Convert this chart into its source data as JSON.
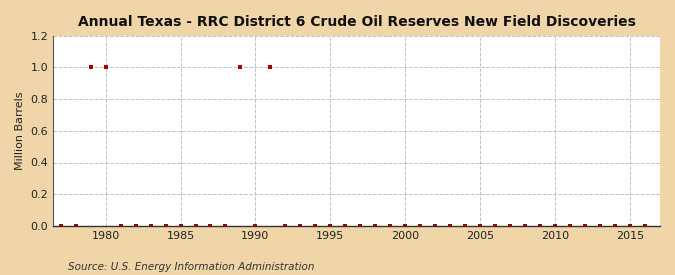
{
  "title": "Annual Texas - RRC District 6 Crude Oil Reserves New Field Discoveries",
  "ylabel": "Million Barrels",
  "source": "Source: U.S. Energy Information Administration",
  "background_color": "#f0d5a8",
  "plot_bg_color": "#ffffff",
  "marker_color": "#aa0000",
  "grid_color": "#bbbbbb",
  "xlim": [
    1976.5,
    2017
  ],
  "ylim": [
    0.0,
    1.2
  ],
  "xticks": [
    1980,
    1985,
    1990,
    1995,
    2000,
    2005,
    2010,
    2015
  ],
  "yticks": [
    0.0,
    0.2,
    0.4,
    0.6,
    0.8,
    1.0,
    1.2
  ],
  "years": [
    1977,
    1978,
    1979,
    1980,
    1981,
    1982,
    1983,
    1984,
    1985,
    1986,
    1987,
    1988,
    1989,
    1990,
    1991,
    1992,
    1993,
    1994,
    1995,
    1996,
    1997,
    1998,
    1999,
    2000,
    2001,
    2002,
    2003,
    2004,
    2005,
    2006,
    2007,
    2008,
    2009,
    2010,
    2011,
    2012,
    2013,
    2014,
    2015,
    2016
  ],
  "values": [
    0.0,
    0.0,
    1.0,
    1.0,
    0.0,
    0.0,
    0.0,
    0.0,
    0.0,
    0.0,
    0.0,
    0.0,
    1.0,
    0.0,
    1.0,
    0.0,
    0.0,
    0.0,
    0.0,
    0.0,
    0.0,
    0.0,
    0.0,
    0.0,
    0.0,
    0.0,
    0.0,
    0.0,
    0.0,
    0.0,
    0.0,
    0.0,
    0.0,
    0.0,
    0.0,
    0.0,
    0.0,
    0.0,
    0.0,
    0.0
  ]
}
